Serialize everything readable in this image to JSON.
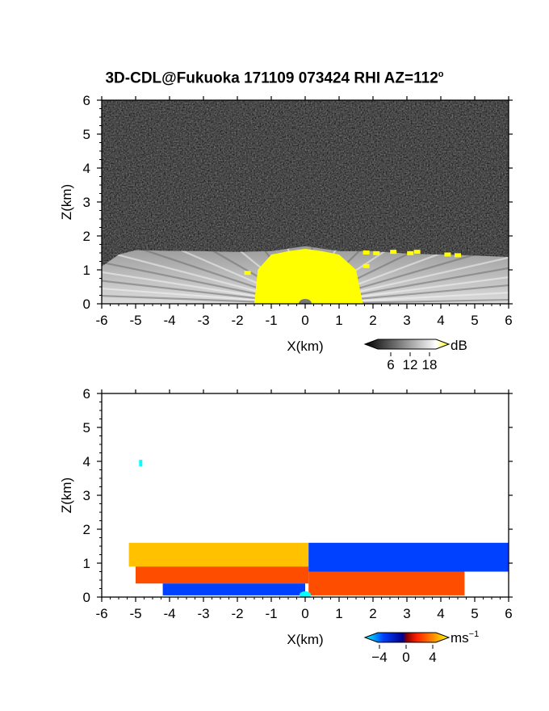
{
  "title": "3D-CDL@Fukuoka 171109 073424 RHI AZ=112",
  "title_suffix": "o",
  "chart_data": [
    {
      "type": "heatmap",
      "quantity": "reflectivity",
      "xlabel": "X(km)",
      "ylabel": "Z(km)",
      "xlim": [
        -6,
        6
      ],
      "ylim": [
        0,
        6
      ],
      "x_ticks": [
        "-6",
        "-5",
        "-4",
        "-3",
        "-2",
        "-1",
        "0",
        "1",
        "2",
        "3",
        "4",
        "5",
        "6"
      ],
      "y_ticks": [
        "0",
        "1",
        "2",
        "3",
        "4",
        "5",
        "6"
      ],
      "background": "#202020",
      "echo_top_km": [
        [
          -6.0,
          1.1
        ],
        [
          -5.5,
          1.45
        ],
        [
          -5.0,
          1.58
        ],
        [
          -4.0,
          1.56
        ],
        [
          -3.0,
          1.55
        ],
        [
          -2.0,
          1.53
        ],
        [
          -1.0,
          1.55
        ],
        [
          0.0,
          1.7
        ],
        [
          1.0,
          1.55
        ],
        [
          2.0,
          1.55
        ],
        [
          3.0,
          1.48
        ],
        [
          4.0,
          1.45
        ],
        [
          5.0,
          1.42
        ],
        [
          6.0,
          1.38
        ]
      ],
      "high_reflectivity_top_km": [
        [
          -1.5,
          0.0
        ],
        [
          -1.4,
          1.0
        ],
        [
          -1.0,
          1.45
        ],
        [
          -0.5,
          1.55
        ],
        [
          0.0,
          1.62
        ],
        [
          0.5,
          1.55
        ],
        [
          1.0,
          1.45
        ],
        [
          1.5,
          1.0
        ],
        [
          1.7,
          0.0
        ]
      ],
      "colorbar": {
        "unit": "dB",
        "ticks": [
          "6",
          "12",
          "18"
        ],
        "range": [
          0,
          20
        ],
        "high_color": "#ffff00"
      }
    },
    {
      "type": "heatmap",
      "quantity": "doppler velocity",
      "xlabel": "X(km)",
      "ylabel": "Z(km)",
      "xlim": [
        -6,
        6
      ],
      "ylim": [
        0,
        6
      ],
      "x_ticks": [
        "-6",
        "-5",
        "-4",
        "-3",
        "-2",
        "-1",
        "0",
        "1",
        "2",
        "3",
        "4",
        "5",
        "6"
      ],
      "y_ticks": [
        "0",
        "1",
        "2",
        "3",
        "4",
        "5",
        "6"
      ],
      "layers": [
        {
          "x_range": [
            -5.2,
            0.1
          ],
          "z_range": [
            0.9,
            1.6
          ],
          "value": 4
        },
        {
          "x_range": [
            -5.0,
            0.1
          ],
          "z_range": [
            0.4,
            0.9
          ],
          "value": 2
        },
        {
          "x_range": [
            -4.2,
            0.0
          ],
          "z_range": [
            0.05,
            0.4
          ],
          "value": -3
        },
        {
          "x_range": [
            0.1,
            6.0
          ],
          "z_range": [
            0.75,
            1.6
          ],
          "value": -3
        },
        {
          "x_range": [
            0.1,
            4.7
          ],
          "z_range": [
            0.05,
            0.75
          ],
          "value": 2
        }
      ],
      "isolated_points": [
        [
          -4.85,
          3.95,
          -5
        ]
      ],
      "colorbar": {
        "unit": "ms",
        "unit_exponent": "−1",
        "ticks": [
          "−4",
          "0",
          "4"
        ],
        "range": [
          -5,
          5
        ]
      }
    }
  ]
}
